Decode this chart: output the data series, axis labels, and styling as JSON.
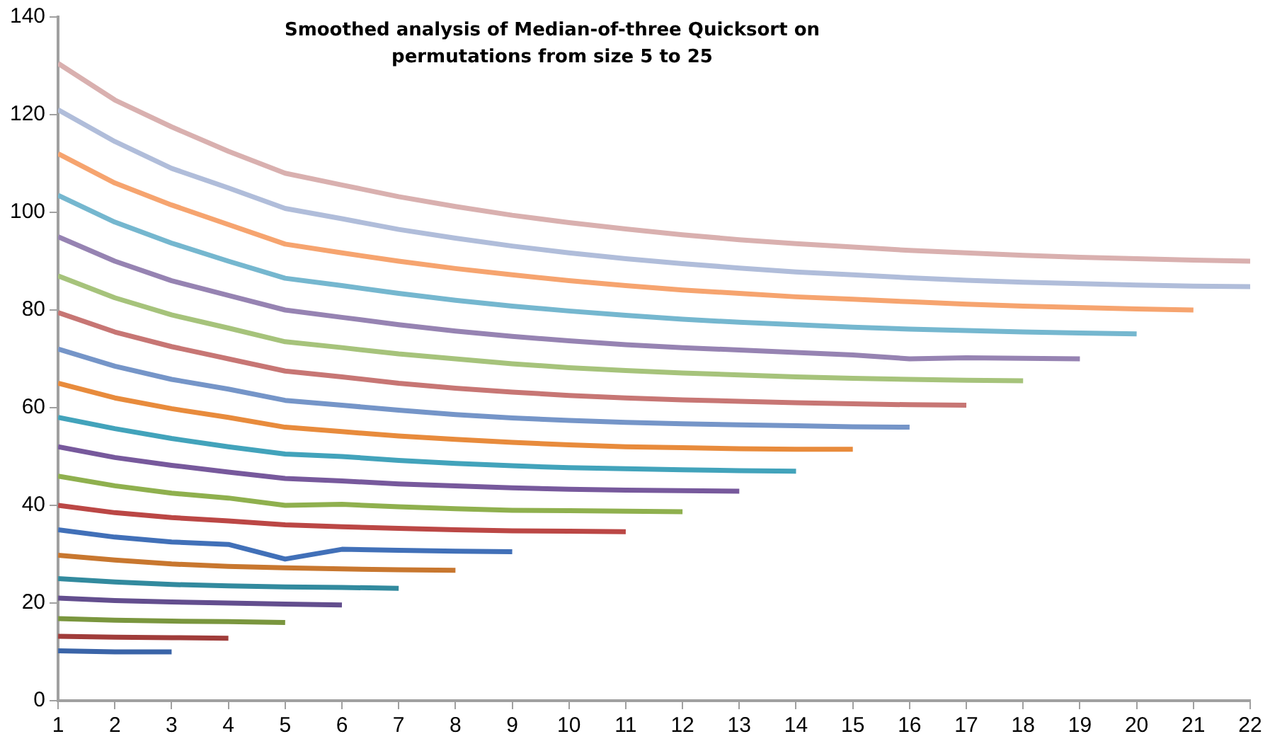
{
  "chart_data": {
    "type": "line",
    "title": "Smoothed analysis of Median-of-three Quicksort on permutations from size 5 to 25",
    "x": [
      1,
      2,
      3,
      4,
      5,
      6,
      7,
      8,
      9,
      10,
      11,
      12,
      13,
      14,
      15,
      16,
      17,
      18,
      19,
      20,
      21,
      22
    ],
    "xlim": [
      1,
      22
    ],
    "xticks": [
      1,
      2,
      3,
      4,
      5,
      6,
      7,
      8,
      9,
      10,
      11,
      12,
      13,
      14,
      15,
      16,
      17,
      18,
      19,
      20,
      21,
      22
    ],
    "ylim": [
      0,
      140
    ],
    "yticks": [
      0,
      20,
      40,
      60,
      80,
      100,
      120,
      140
    ],
    "grid": false,
    "legend": false,
    "marker": "none",
    "line_style": "solid",
    "series": [
      {
        "color": "#3a64a8",
        "values": [
          10.2,
          10,
          10,
          null,
          null,
          null,
          null,
          null,
          null,
          null,
          null,
          null,
          null,
          null,
          null,
          null,
          null,
          null,
          null,
          null,
          null,
          null
        ]
      },
      {
        "color": "#a03c3a",
        "values": [
          13.2,
          13,
          12.9,
          12.8,
          null,
          null,
          null,
          null,
          null,
          null,
          null,
          null,
          null,
          null,
          null,
          null,
          null,
          null,
          null,
          null,
          null,
          null
        ]
      },
      {
        "color": "#7a963e",
        "values": [
          16.8,
          16.5,
          16.3,
          16.2,
          16,
          null,
          null,
          null,
          null,
          null,
          null,
          null,
          null,
          null,
          null,
          null,
          null,
          null,
          null,
          null,
          null,
          null
        ]
      },
      {
        "color": "#634e8e",
        "values": [
          21,
          20.5,
          20.2,
          20,
          19.8,
          19.6,
          null,
          null,
          null,
          null,
          null,
          null,
          null,
          null,
          null,
          null,
          null,
          null,
          null,
          null,
          null,
          null
        ]
      },
      {
        "color": "#328a9e",
        "values": [
          25,
          24.3,
          23.8,
          23.5,
          23.3,
          23.2,
          23,
          null,
          null,
          null,
          null,
          null,
          null,
          null,
          null,
          null,
          null,
          null,
          null,
          null,
          null,
          null
        ]
      },
      {
        "color": "#c8772f",
        "values": [
          29.8,
          28.8,
          28,
          27.5,
          27.2,
          27,
          26.8,
          26.7,
          null,
          null,
          null,
          null,
          null,
          null,
          null,
          null,
          null,
          null,
          null,
          null,
          null,
          null
        ]
      },
      {
        "color": "#4170b8",
        "values": [
          35,
          33.5,
          32.5,
          32,
          29,
          31,
          30.8,
          30.6,
          30.5,
          null,
          null,
          null,
          null,
          null,
          null,
          null,
          null,
          null,
          null,
          null,
          null,
          null
        ]
      },
      {
        "color": "#bb4745",
        "values": [
          40,
          38.5,
          37.5,
          36.8,
          36,
          35.6,
          35.3,
          35,
          34.8,
          34.7,
          34.6,
          null,
          null,
          null,
          null,
          null,
          null,
          null,
          null,
          null,
          null,
          null
        ]
      },
      {
        "color": "#8fb04e",
        "values": [
          46,
          44,
          42.5,
          41.5,
          40,
          40.2,
          39.7,
          39.3,
          39,
          38.9,
          38.8,
          38.7,
          null,
          null,
          null,
          null,
          null,
          null,
          null,
          null,
          null,
          null
        ]
      },
      {
        "color": "#77599c",
        "values": [
          52,
          49.8,
          48.2,
          46.8,
          45.5,
          45,
          44.4,
          44,
          43.6,
          43.3,
          43.1,
          43,
          42.9,
          null,
          null,
          null,
          null,
          null,
          null,
          null,
          null,
          null
        ]
      },
      {
        "color": "#42a3bb",
        "values": [
          58,
          55.7,
          53.7,
          52,
          50.5,
          50,
          49.2,
          48.6,
          48.1,
          47.7,
          47.5,
          47.3,
          47.1,
          47,
          null,
          null,
          null,
          null,
          null,
          null,
          null,
          null
        ]
      },
      {
        "color": "#e88b3c",
        "values": [
          65,
          62,
          59.8,
          58,
          56,
          55.1,
          54.2,
          53.5,
          52.9,
          52.4,
          52,
          51.8,
          51.6,
          51.5,
          51.5,
          null,
          null,
          null,
          null,
          null,
          null,
          null
        ]
      },
      {
        "color": "#7595c8",
        "values": [
          72,
          68.5,
          65.8,
          63.8,
          61.5,
          60.5,
          59.5,
          58.6,
          57.9,
          57.4,
          57,
          56.7,
          56.5,
          56.3,
          56.1,
          56,
          null,
          null,
          null,
          null,
          null,
          null
        ]
      },
      {
        "color": "#c77674",
        "values": [
          79.5,
          75.5,
          72.5,
          70,
          67.5,
          66.3,
          65,
          64,
          63.2,
          62.5,
          62,
          61.6,
          61.3,
          61,
          60.8,
          60.6,
          60.5,
          null,
          null,
          null,
          null,
          null
        ]
      },
      {
        "color": "#a6c37b",
        "values": [
          87,
          82.5,
          79,
          76.3,
          73.5,
          72.3,
          71,
          70,
          69,
          68.2,
          67.6,
          67.1,
          66.7,
          66.3,
          66,
          65.8,
          65.6,
          65.5,
          null,
          null,
          null,
          null
        ]
      },
      {
        "color": "#9683b2",
        "values": [
          95,
          90,
          86,
          83,
          80,
          78.5,
          77,
          75.7,
          74.6,
          73.7,
          72.9,
          72.3,
          71.8,
          71.3,
          70.8,
          70,
          70.2,
          70.1,
          70,
          null,
          null,
          null
        ]
      },
      {
        "color": "#75b7cf",
        "values": [
          103.5,
          98,
          93.7,
          90,
          86.5,
          85,
          83.4,
          82,
          80.8,
          79.8,
          78.9,
          78.1,
          77.5,
          77,
          76.5,
          76.1,
          75.8,
          75.5,
          75.3,
          75.1,
          null,
          null
        ]
      },
      {
        "color": "#f6a46f",
        "values": [
          112,
          106,
          101.5,
          97.5,
          93.5,
          91.7,
          90,
          88.5,
          87.2,
          86,
          85,
          84.1,
          83.4,
          82.7,
          82.2,
          81.7,
          81.2,
          80.8,
          80.5,
          80.2,
          80,
          null
        ]
      },
      {
        "color": "#b0bdda",
        "values": [
          121,
          114.5,
          109,
          105,
          100.8,
          98.7,
          96.5,
          94.7,
          93.1,
          91.7,
          90.5,
          89.5,
          88.6,
          87.8,
          87.2,
          86.6,
          86.1,
          85.7,
          85.4,
          85.1,
          84.9,
          84.8
        ]
      },
      {
        "color": "#d9b0af",
        "values": [
          130.5,
          123,
          117.5,
          112.5,
          108,
          105.6,
          103.2,
          101.2,
          99.4,
          97.9,
          96.6,
          95.4,
          94.4,
          93.6,
          92.9,
          92.2,
          91.7,
          91.2,
          90.8,
          90.5,
          90.2,
          90
        ]
      }
    ]
  }
}
